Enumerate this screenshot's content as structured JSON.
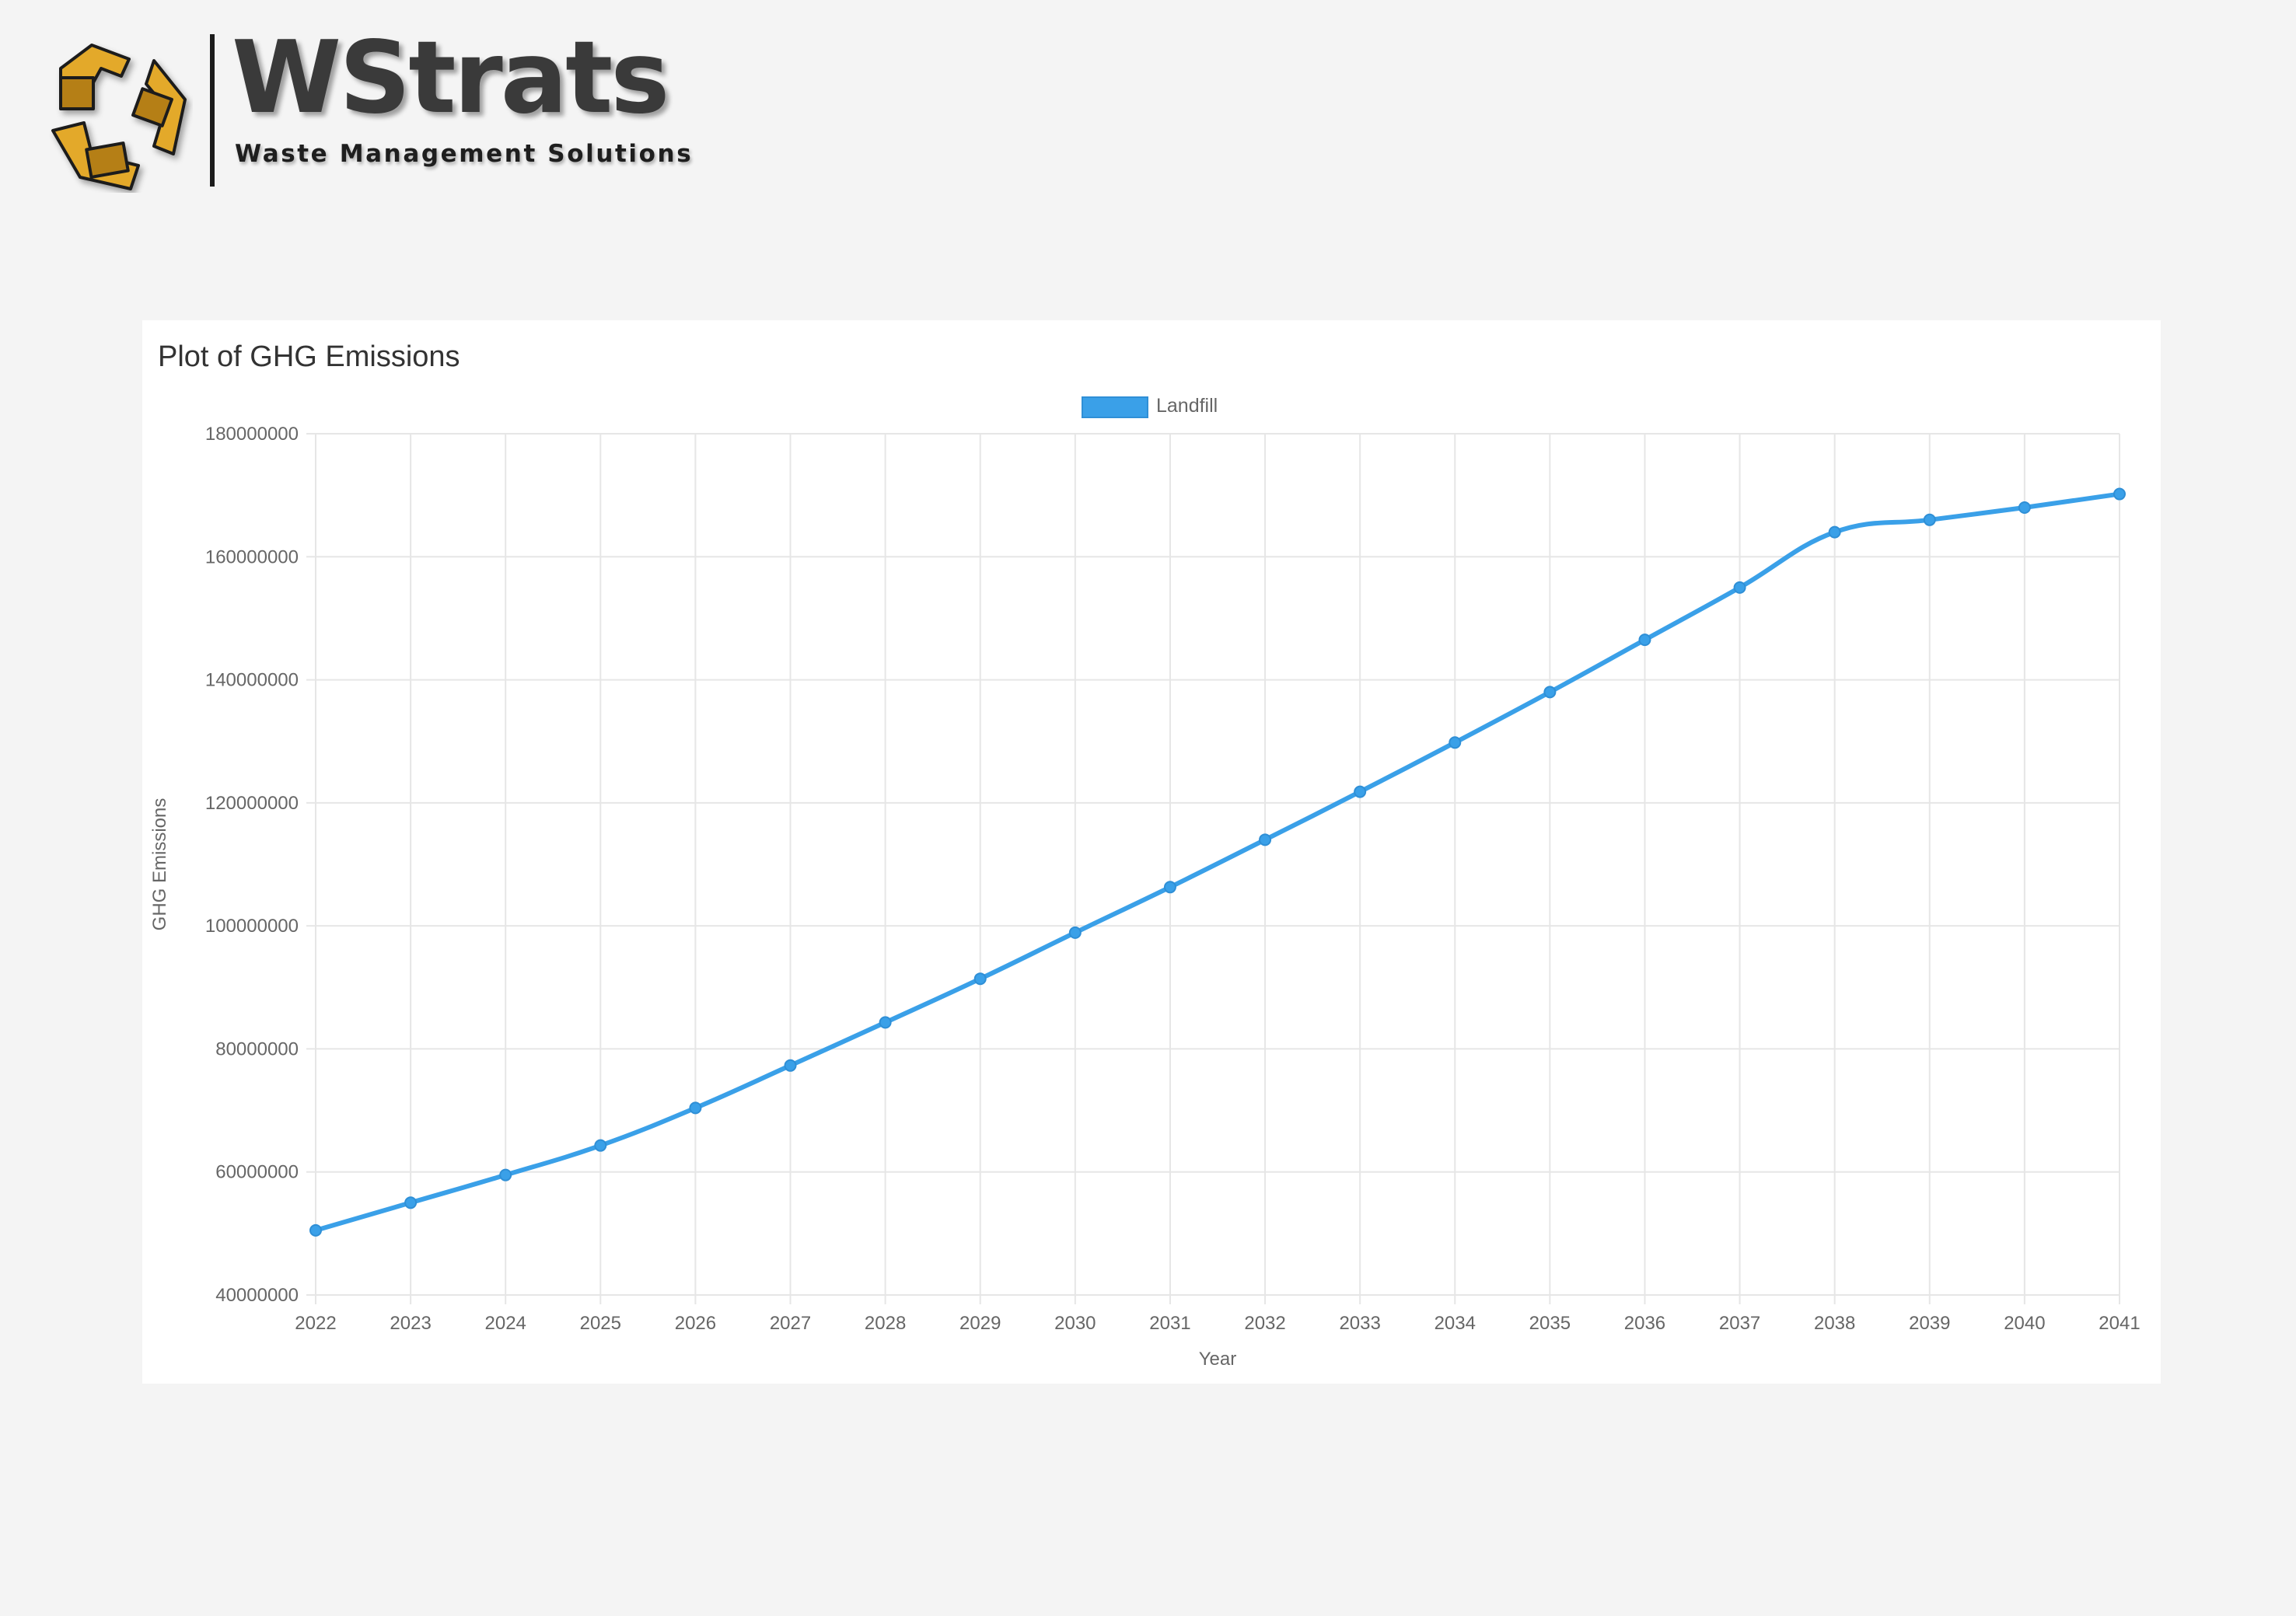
{
  "brand": {
    "name": "WStrats",
    "tagline": "Waste Management Solutions",
    "logo_icon": "recycle-arrows-icon",
    "colors": {
      "gold": "#e3a92b",
      "dark": "#3a3a3a"
    }
  },
  "chart_data": {
    "type": "line",
    "title": "Plot of GHG Emissions",
    "xlabel": "Year",
    "ylabel": "GHG Emissions",
    "x": [
      "2022",
      "2023",
      "2024",
      "2025",
      "2026",
      "2027",
      "2028",
      "2029",
      "2030",
      "2031",
      "2032",
      "2033",
      "2034",
      "2035",
      "2036",
      "2037",
      "2038",
      "2039",
      "2040",
      "2041"
    ],
    "series": [
      {
        "name": "Landfill",
        "color": "#3aa0e8",
        "values": [
          50500000,
          55000000,
          59500000,
          64300000,
          70400000,
          77300000,
          84300000,
          91400000,
          98900000,
          106300000,
          114000000,
          121800000,
          129800000,
          138000000,
          146500000,
          155000000,
          164000000,
          166000000,
          168000000,
          170200000
        ]
      }
    ],
    "ylim": [
      40000000,
      180000000
    ],
    "yticks": [
      "40000000",
      "60000000",
      "80000000",
      "100000000",
      "120000000",
      "140000000",
      "160000000",
      "180000000"
    ],
    "grid": true,
    "legend_position": "top-center"
  }
}
